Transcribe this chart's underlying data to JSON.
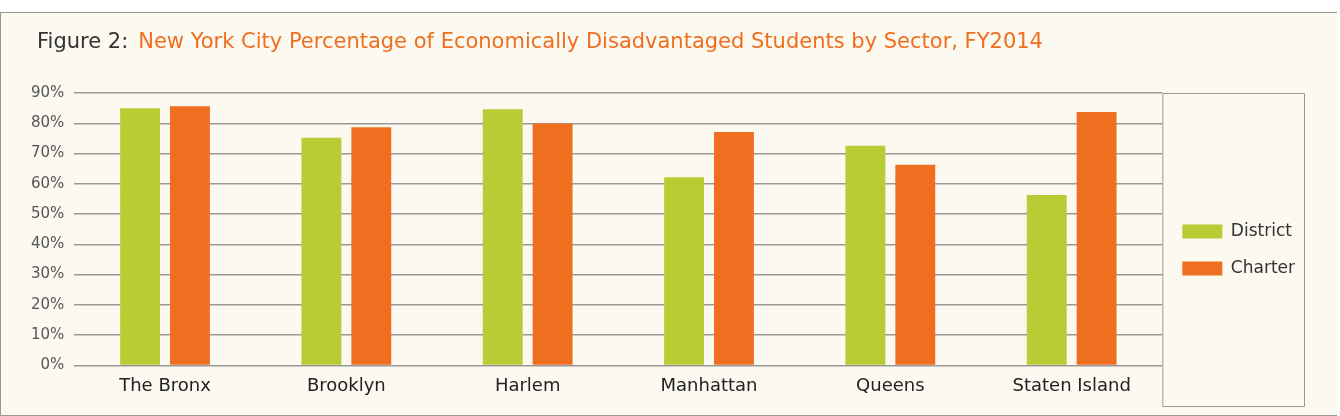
{
  "chart_data": {
    "type": "bar",
    "title": "Figure 2:",
    "subtitle": "New York City Percentage of Economically Disadvantaged Students by Sector, FY2014",
    "categories": [
      "The Bronx",
      "Brooklyn",
      "Harlem",
      "Manhattan",
      "Queens",
      "Staten Island"
    ],
    "series": [
      {
        "name": "District",
        "color": "#b8cc33",
        "values": [
          85.0,
          75.2,
          84.6,
          62.2,
          72.6,
          56.3
        ]
      },
      {
        "name": "Charter",
        "color": "#f06e1f",
        "values": [
          85.6,
          78.7,
          79.9,
          77.1,
          66.3,
          83.7
        ]
      }
    ],
    "ylim": [
      0,
      90
    ],
    "yticks": [
      {
        "value": 0,
        "label": "0%"
      },
      {
        "value": 10,
        "label": "10%"
      },
      {
        "value": 20,
        "label": "20%"
      },
      {
        "value": 30,
        "label": "30%"
      },
      {
        "value": 40,
        "label": "40%"
      },
      {
        "value": 50,
        "label": "50%"
      },
      {
        "value": 60,
        "label": "60%"
      },
      {
        "value": 70,
        "label": "70%"
      },
      {
        "value": 80,
        "label": "80%"
      },
      {
        "value": 90,
        "label": "90%"
      }
    ],
    "grid": "y",
    "legend": "right"
  }
}
